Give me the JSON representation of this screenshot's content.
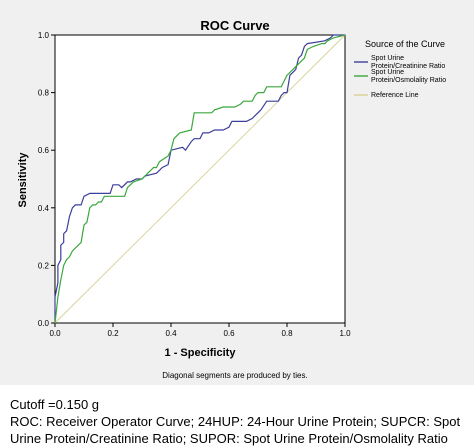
{
  "chart_data": {
    "type": "line",
    "title": "ROC Curve",
    "xlabel": "1 - Specificity",
    "ylabel": "Sensitivity",
    "xlim": [
      0,
      1
    ],
    "ylim": [
      0,
      1
    ],
    "xticks": [
      "0.0",
      "0.2",
      "0.4",
      "0.6",
      "0.8",
      "1.0"
    ],
    "yticks": [
      "0.0",
      "0.2",
      "0.4",
      "0.6",
      "0.8",
      "1.0"
    ],
    "grid": false,
    "legend": {
      "title": "Source of the Curve",
      "placement": "right",
      "entries": [
        [
          "Spot Urine",
          "Protein/Creatinine Ratio"
        ],
        [
          "Spot Urine",
          "Protein/Osmolality Ratio"
        ],
        [
          "Reference Line"
        ]
      ]
    },
    "note": "Diagonal segments are produced by ties.",
    "series": [
      {
        "name": "Spot Urine Protein/Creatinine Ratio",
        "color": "#3c3f9c",
        "points": [
          [
            0,
            0
          ],
          [
            0,
            0.09
          ],
          [
            0.01,
            0.14
          ],
          [
            0.01,
            0.2
          ],
          [
            0.02,
            0.22
          ],
          [
            0.02,
            0.27
          ],
          [
            0.03,
            0.28
          ],
          [
            0.03,
            0.31
          ],
          [
            0.04,
            0.32
          ],
          [
            0.05,
            0.37
          ],
          [
            0.06,
            0.4
          ],
          [
            0.07,
            0.41
          ],
          [
            0.09,
            0.41
          ],
          [
            0.1,
            0.44
          ],
          [
            0.12,
            0.45
          ],
          [
            0.19,
            0.45
          ],
          [
            0.2,
            0.48
          ],
          [
            0.22,
            0.48
          ],
          [
            0.23,
            0.47
          ],
          [
            0.25,
            0.49
          ],
          [
            0.26,
            0.49
          ],
          [
            0.28,
            0.5
          ],
          [
            0.3,
            0.5
          ],
          [
            0.31,
            0.51
          ],
          [
            0.35,
            0.52
          ],
          [
            0.37,
            0.54
          ],
          [
            0.39,
            0.55
          ],
          [
            0.4,
            0.6
          ],
          [
            0.44,
            0.61
          ],
          [
            0.45,
            0.6
          ],
          [
            0.47,
            0.63
          ],
          [
            0.48,
            0.64
          ],
          [
            0.5,
            0.64
          ],
          [
            0.51,
            0.66
          ],
          [
            0.53,
            0.66
          ],
          [
            0.55,
            0.67
          ],
          [
            0.58,
            0.67
          ],
          [
            0.6,
            0.68
          ],
          [
            0.61,
            0.7
          ],
          [
            0.66,
            0.7
          ],
          [
            0.68,
            0.71
          ],
          [
            0.69,
            0.72
          ],
          [
            0.7,
            0.73
          ],
          [
            0.71,
            0.74
          ],
          [
            0.73,
            0.77
          ],
          [
            0.77,
            0.77
          ],
          [
            0.78,
            0.79
          ],
          [
            0.79,
            0.8
          ],
          [
            0.8,
            0.8
          ],
          [
            0.81,
            0.86
          ],
          [
            0.82,
            0.87
          ],
          [
            0.83,
            0.88
          ],
          [
            0.84,
            0.92
          ],
          [
            0.85,
            0.93
          ],
          [
            0.86,
            0.96
          ],
          [
            0.87,
            0.97
          ],
          [
            0.93,
            0.98
          ],
          [
            0.95,
            0.99
          ],
          [
            0.96,
            1.0
          ],
          [
            1.0,
            1.0
          ]
        ]
      },
      {
        "name": "Spot Urine Protein/Osmolality Ratio",
        "color": "#3aa83c",
        "points": [
          [
            0,
            0
          ],
          [
            0.01,
            0.09
          ],
          [
            0.02,
            0.15
          ],
          [
            0.03,
            0.2
          ],
          [
            0.04,
            0.22
          ],
          [
            0.05,
            0.23
          ],
          [
            0.06,
            0.25
          ],
          [
            0.08,
            0.27
          ],
          [
            0.09,
            0.28
          ],
          [
            0.1,
            0.34
          ],
          [
            0.11,
            0.35
          ],
          [
            0.12,
            0.4
          ],
          [
            0.13,
            0.41
          ],
          [
            0.14,
            0.41
          ],
          [
            0.15,
            0.42
          ],
          [
            0.16,
            0.42
          ],
          [
            0.17,
            0.44
          ],
          [
            0.24,
            0.44
          ],
          [
            0.25,
            0.47
          ],
          [
            0.26,
            0.48
          ],
          [
            0.27,
            0.49
          ],
          [
            0.3,
            0.5
          ],
          [
            0.32,
            0.52
          ],
          [
            0.34,
            0.54
          ],
          [
            0.35,
            0.54
          ],
          [
            0.36,
            0.56
          ],
          [
            0.39,
            0.58
          ],
          [
            0.4,
            0.6
          ],
          [
            0.41,
            0.64
          ],
          [
            0.42,
            0.65
          ],
          [
            0.43,
            0.66
          ],
          [
            0.47,
            0.67
          ],
          [
            0.48,
            0.73
          ],
          [
            0.54,
            0.73
          ],
          [
            0.55,
            0.74
          ],
          [
            0.58,
            0.75
          ],
          [
            0.62,
            0.75
          ],
          [
            0.64,
            0.76
          ],
          [
            0.65,
            0.77
          ],
          [
            0.68,
            0.77
          ],
          [
            0.69,
            0.79
          ],
          [
            0.7,
            0.8
          ],
          [
            0.72,
            0.8
          ],
          [
            0.73,
            0.82
          ],
          [
            0.78,
            0.82
          ],
          [
            0.8,
            0.86
          ],
          [
            0.82,
            0.88
          ],
          [
            0.84,
            0.9
          ],
          [
            0.85,
            0.91
          ],
          [
            0.86,
            0.92
          ],
          [
            0.87,
            0.95
          ],
          [
            0.89,
            0.96
          ],
          [
            0.92,
            0.97
          ],
          [
            0.93,
            0.97
          ],
          [
            0.94,
            0.98
          ],
          [
            0.96,
            0.99
          ],
          [
            1.0,
            1.0
          ]
        ]
      },
      {
        "name": "Reference Line",
        "color": "#d8d096",
        "points": [
          [
            0,
            0
          ],
          [
            1,
            1
          ]
        ]
      }
    ]
  },
  "footer": {
    "cutoff": "Cutoff =0.150 g",
    "abbrev_line1": "ROC: Receiver Operator Curve; 24HUP: 24-Hour Urine Protein; SUPCR: Spot",
    "abbrev_line2": "Urine Protein/Creatinine Ratio; SUPOR: Spot Urine Protein/Osmolality Ratio"
  }
}
